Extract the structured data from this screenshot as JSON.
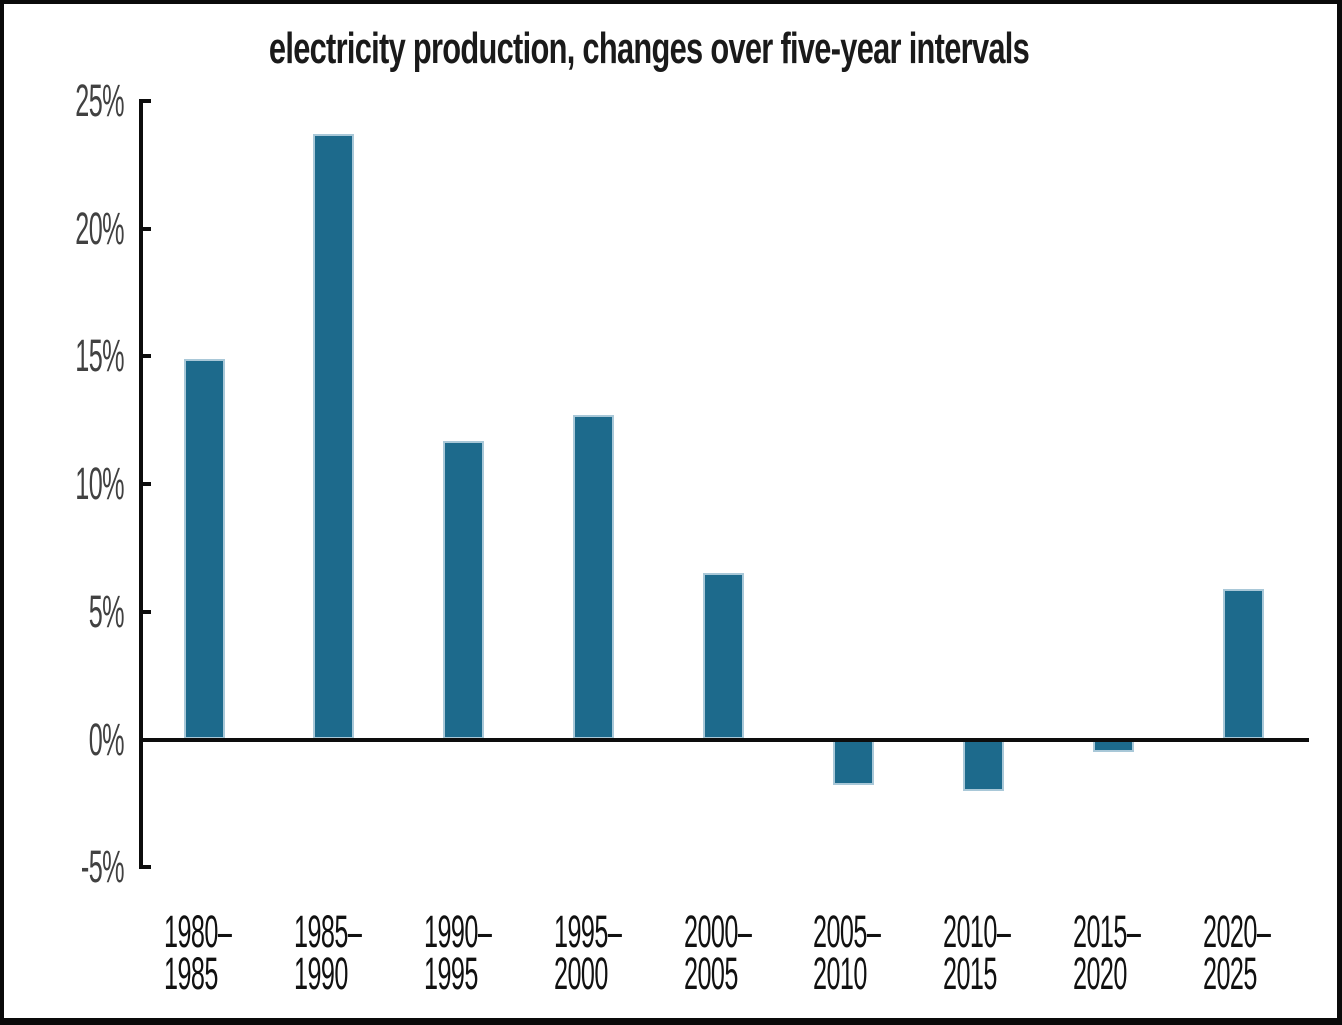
{
  "chart_data": {
    "type": "bar",
    "title": "electricity production, changes over five-year intervals",
    "categories": [
      "1980–1985",
      "1985–1990",
      "1990–1995",
      "1995–2000",
      "2000–2005",
      "2005–2010",
      "2010–2015",
      "2015–2020",
      "2020–2025"
    ],
    "x_tick_labels": [
      "1980–\n1985",
      "1985–\n1990",
      "1990–\n1995",
      "1995–\n2000",
      "2000–\n2005",
      "2005–\n2010",
      "2010–\n2015",
      "2015–\n2020",
      "2020–\n2025"
    ],
    "values": [
      14.9,
      23.7,
      11.7,
      12.7,
      6.5,
      -1.8,
      -2.0,
      -0.5,
      5.9
    ],
    "unit": "%",
    "xlabel": "",
    "ylabel": "",
    "ylim": [
      -5,
      25
    ],
    "y_ticks": [
      25,
      20,
      15,
      10,
      5,
      0,
      -5
    ],
    "y_tick_labels": [
      "25%",
      "20%",
      "15%",
      "10%",
      "5%",
      "0%",
      "-5%"
    ],
    "grid": false,
    "legend": false,
    "colors": {
      "bar_fill": "#1d6a8c",
      "bar_edge": "#a9c8d8",
      "axis": "#0d0d0d",
      "y_label": "#414141",
      "x_label": "#111111",
      "title": "#1a1a1a",
      "frame": "#0a0a0a",
      "background": "#ffffff"
    }
  }
}
